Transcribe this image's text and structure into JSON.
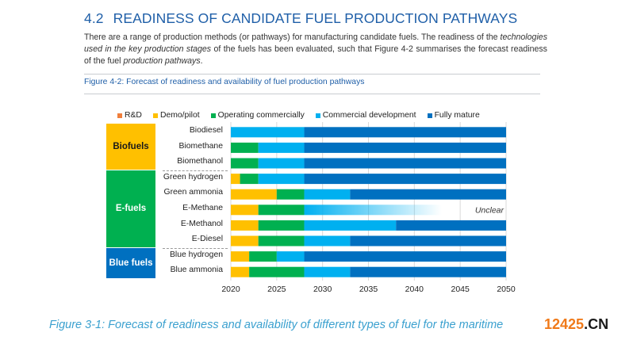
{
  "section": {
    "number": "4.2",
    "title": "READINESS OF CANDIDATE FUEL PRODUCTION PATHWAYS",
    "paragraph_parts": [
      {
        "text": "There are a range of production methods (or pathways) for manufacturing candidate fuels. The readiness of the ",
        "italic": false
      },
      {
        "text": "technologies used in the key production stages",
        "italic": true
      },
      {
        "text": " of the fuels has been evaluated, such that Figure 4-2 summarises the forecast readiness of the fuel ",
        "italic": false
      },
      {
        "text": "production pathways",
        "italic": true
      },
      {
        "text": ".",
        "italic": false
      }
    ],
    "figure_title": "Figure 4-2: Forecast of readiness and availability of fuel production pathways"
  },
  "colors": {
    "rd": "#f07f3c",
    "demo": "#ffc000",
    "operating": "#00b050",
    "commercial": "#00b0f0",
    "mature": "#0070c0",
    "heading": "#1f5fa8",
    "caption": "#3aa0cf"
  },
  "chart_data": {
    "type": "bar",
    "orientation": "horizontal-stacked-timeline",
    "title": "Forecast of readiness and availability of fuel production pathways",
    "xlabel": "",
    "ylabel": "",
    "xlim": [
      2020,
      2050
    ],
    "x_ticks": [
      2020,
      2025,
      2030,
      2035,
      2040,
      2045,
      2050
    ],
    "grid": true,
    "legend_position": "top",
    "legend": [
      {
        "key": "rd",
        "label": "R&D"
      },
      {
        "key": "demo",
        "label": "Demo/pilot"
      },
      {
        "key": "operating",
        "label": "Operating commercially"
      },
      {
        "key": "commercial",
        "label": "Commercial development"
      },
      {
        "key": "mature",
        "label": "Fully mature"
      }
    ],
    "groups": [
      {
        "label": "Biofuels",
        "color": "#ffc000",
        "text_color": "#1a1a1a",
        "rows": [
          0,
          1,
          2
        ]
      },
      {
        "label": "E-fuels",
        "color": "#00b050",
        "text_color": "#ffffff",
        "rows": [
          3,
          4,
          5,
          6,
          7
        ]
      },
      {
        "label": "Blue fuels",
        "color": "#0070c0",
        "text_color": "#ffffff",
        "rows": [
          8,
          9
        ]
      }
    ],
    "categories": [
      "Biodiesel",
      "Biomethane",
      "Biomethanol",
      "Green hydrogen",
      "Green ammonia",
      "E-Methane",
      "E-Methanol",
      "E-Diesel",
      "Blue hydrogen",
      "Blue ammonia"
    ],
    "rows": [
      {
        "label": "Biodiesel",
        "segments": [
          {
            "stage": "commercial",
            "start": 2020,
            "end": 2028
          },
          {
            "stage": "mature",
            "start": 2028,
            "end": 2050
          }
        ]
      },
      {
        "label": "Biomethane",
        "segments": [
          {
            "stage": "operating",
            "start": 2020,
            "end": 2023
          },
          {
            "stage": "commercial",
            "start": 2023,
            "end": 2028
          },
          {
            "stage": "mature",
            "start": 2028,
            "end": 2050
          }
        ]
      },
      {
        "label": "Biomethanol",
        "segments": [
          {
            "stage": "operating",
            "start": 2020,
            "end": 2023
          },
          {
            "stage": "commercial",
            "start": 2023,
            "end": 2028
          },
          {
            "stage": "mature",
            "start": 2028,
            "end": 2050
          }
        ]
      },
      {
        "label": "Green hydrogen",
        "segments": [
          {
            "stage": "demo",
            "start": 2020,
            "end": 2021
          },
          {
            "stage": "operating",
            "start": 2021,
            "end": 2023
          },
          {
            "stage": "commercial",
            "start": 2023,
            "end": 2028
          },
          {
            "stage": "mature",
            "start": 2028,
            "end": 2050
          }
        ]
      },
      {
        "label": "Green ammonia",
        "segments": [
          {
            "stage": "demo",
            "start": 2020,
            "end": 2025
          },
          {
            "stage": "operating",
            "start": 2025,
            "end": 2028
          },
          {
            "stage": "commercial",
            "start": 2028,
            "end": 2033
          },
          {
            "stage": "mature",
            "start": 2033,
            "end": 2050
          }
        ]
      },
      {
        "label": "E-Methane",
        "segments": [
          {
            "stage": "demo",
            "start": 2020,
            "end": 2023
          },
          {
            "stage": "operating",
            "start": 2023,
            "end": 2028
          },
          {
            "stage": "commercial",
            "start": 2028,
            "end": 2043,
            "fade": true
          }
        ],
        "annotation": "Unclear"
      },
      {
        "label": "E-Methanol",
        "segments": [
          {
            "stage": "demo",
            "start": 2020,
            "end": 2023
          },
          {
            "stage": "operating",
            "start": 2023,
            "end": 2028
          },
          {
            "stage": "commercial",
            "start": 2028,
            "end": 2038
          },
          {
            "stage": "mature",
            "start": 2038,
            "end": 2050
          }
        ]
      },
      {
        "label": "E-Diesel",
        "segments": [
          {
            "stage": "demo",
            "start": 2020,
            "end": 2023
          },
          {
            "stage": "operating",
            "start": 2023,
            "end": 2028
          },
          {
            "stage": "commercial",
            "start": 2028,
            "end": 2033
          },
          {
            "stage": "mature",
            "start": 2033,
            "end": 2050
          }
        ]
      },
      {
        "label": "Blue hydrogen",
        "segments": [
          {
            "stage": "demo",
            "start": 2020,
            "end": 2022
          },
          {
            "stage": "operating",
            "start": 2022,
            "end": 2025
          },
          {
            "stage": "commercial",
            "start": 2025,
            "end": 2028
          },
          {
            "stage": "mature",
            "start": 2028,
            "end": 2050
          }
        ]
      },
      {
        "label": "Blue ammonia",
        "segments": [
          {
            "stage": "demo",
            "start": 2020,
            "end": 2022
          },
          {
            "stage": "operating",
            "start": 2022,
            "end": 2028
          },
          {
            "stage": "commercial",
            "start": 2028,
            "end": 2033
          },
          {
            "stage": "mature",
            "start": 2033,
            "end": 2050
          }
        ]
      }
    ]
  },
  "caption": "Figure 3-1: Forecast of readiness and availability of different types of fuel for the maritime",
  "watermark": {
    "part1": "12425",
    "part2": ".CN"
  }
}
